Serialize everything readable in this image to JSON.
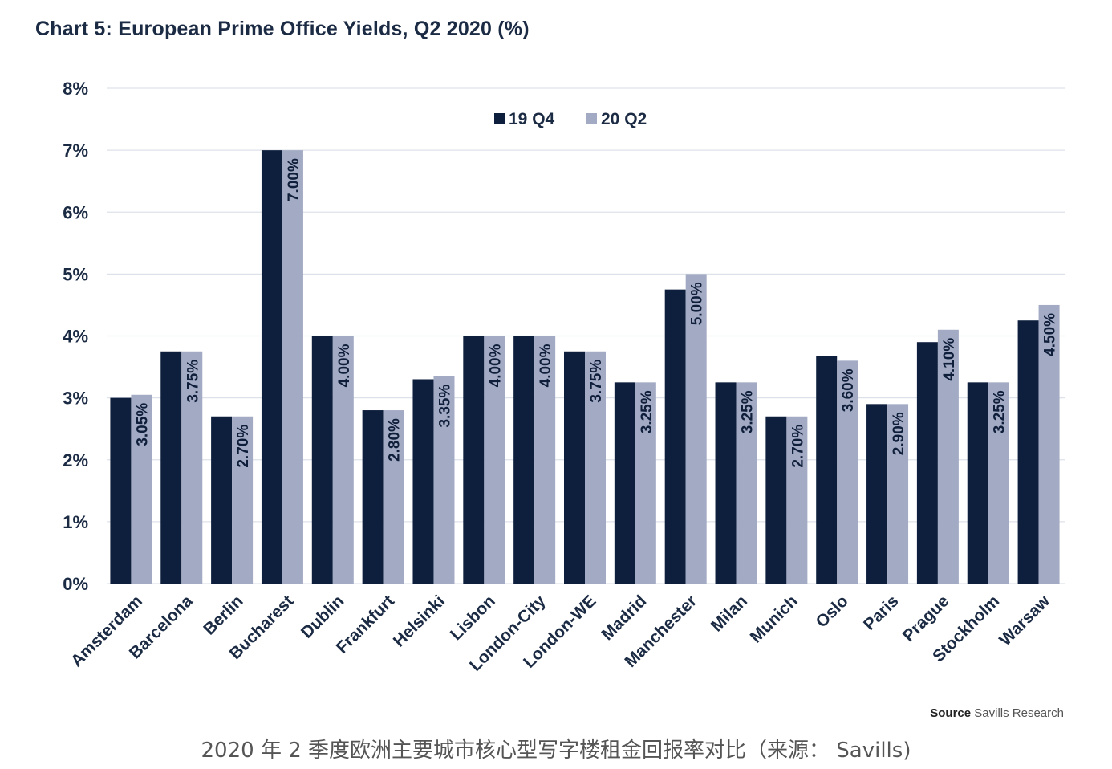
{
  "chart_data": {
    "type": "bar",
    "title": "Chart 5: European Prime Office Yields, Q2 2020 (%)",
    "xlabel": "",
    "ylabel": "",
    "ylim": [
      0,
      8
    ],
    "y_ticks": [
      0,
      1,
      2,
      3,
      4,
      5,
      6,
      7,
      8
    ],
    "y_tick_labels": [
      "0%",
      "1%",
      "2%",
      "3%",
      "4%",
      "5%",
      "6%",
      "7%",
      "8%"
    ],
    "grid": true,
    "legend_position": "top-center",
    "categories": [
      "Amsterdam",
      "Barcelona",
      "Berlin",
      "Bucharest",
      "Dublin",
      "Frankfurt",
      "Helsinki",
      "Lisbon",
      "London-City",
      "London-WE",
      "Madrid",
      "Manchester",
      "Milan",
      "Munich",
      "Oslo",
      "Paris",
      "Prague",
      "Stockholm",
      "Warsaw"
    ],
    "series": [
      {
        "name": "19 Q4",
        "color": "#0e1f3d",
        "values": [
          3.0,
          3.75,
          2.7,
          7.0,
          4.0,
          2.8,
          3.3,
          4.0,
          4.0,
          3.75,
          3.25,
          4.75,
          3.25,
          2.7,
          3.67,
          2.9,
          3.9,
          3.25,
          4.25
        ]
      },
      {
        "name": "20 Q2",
        "color": "#a3abc4",
        "values": [
          3.05,
          3.75,
          2.7,
          7.0,
          4.0,
          2.8,
          3.35,
          4.0,
          4.0,
          3.75,
          3.25,
          5.0,
          3.25,
          2.7,
          3.6,
          2.9,
          4.1,
          3.25,
          4.5
        ],
        "data_labels": [
          "3.05%",
          "3.75%",
          "2.70%",
          "7.00%",
          "4.00%",
          "2.80%",
          "3.35%",
          "4.00%",
          "4.00%",
          "3.75%",
          "3.25%",
          "5.00%",
          "3.25%",
          "2.70%",
          "3.60%",
          "2.90%",
          "4.10%",
          "3.25%",
          "4.50%"
        ]
      }
    ]
  },
  "source": {
    "label": "Source",
    "text": "Savills Research"
  },
  "caption": "2020 年 2 季度欧洲主要城市核心型写字楼租金回报率对比（来源： Savills)",
  "colors": {
    "grid": "#dde2ea",
    "axis_text": "#1c2b44"
  }
}
